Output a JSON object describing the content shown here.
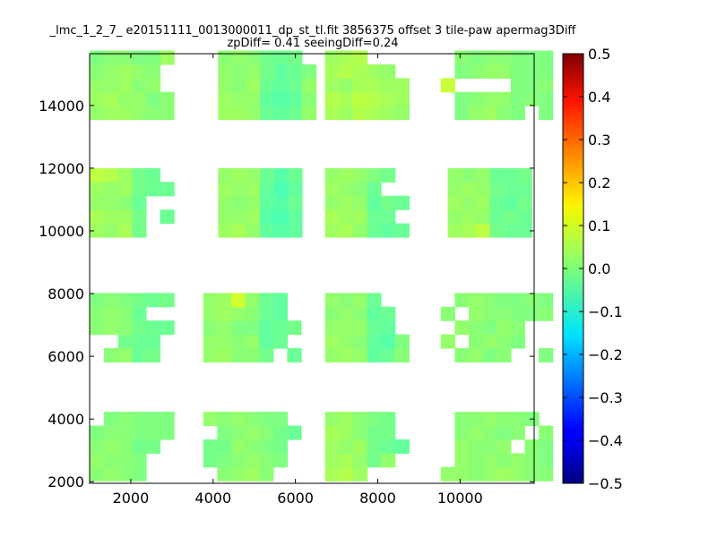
{
  "chart_data": {
    "type": "heatmap",
    "title_line1": "_lmc_1_2_7_ e20151111_0013000011_dp_st_tl.fit 3856375 offset 3 tile-paw apermag3Diff",
    "title_line2": "zpDiff= 0.41 seeingDiff=0.24",
    "xlabel": "",
    "ylabel": "",
    "xlim": [
      1000,
      11800
    ],
    "ylim": [
      1950,
      15650
    ],
    "x_ticks": [
      2000,
      4000,
      6000,
      8000,
      10000
    ],
    "y_ticks": [
      2000,
      4000,
      6000,
      8000,
      10000,
      12000,
      14000
    ],
    "colorbar": {
      "colormap": "jet",
      "vmin": -0.5,
      "vmax": 0.5,
      "ticks": [
        -0.5,
        -0.4,
        -0.3,
        -0.2,
        -0.1,
        0.0,
        0.1,
        0.2,
        0.3,
        0.4,
        0.5
      ]
    },
    "cell_size": [
      340,
      440
    ],
    "bands": [
      {
        "y_start": 13550,
        "rows": 5
      },
      {
        "y_start": 9800,
        "rows": 5
      },
      {
        "y_start": 5820,
        "rows": 5
      },
      {
        "y_start": 2030,
        "rows": 5
      }
    ],
    "columns": [
      {
        "x_start": 1010,
        "cols": 3
      },
      {
        "x_start": 2030,
        "cols": 2
      },
      {
        "x_start": 3400,
        "cols": 3
      },
      {
        "x_start": 4420,
        "cols": 3
      },
      {
        "x_start": 6720,
        "cols": 3
      },
      {
        "x_start": 7740,
        "cols": 3
      },
      {
        "x_start": 9700,
        "cols": 3
      },
      {
        "x_start": 10720,
        "cols": 3
      }
    ],
    "panels": [
      {
        "band": 0,
        "x_start": 1010,
        "ncols": 6,
        "values": [
          [
            0.02,
            0.03,
            0.03,
            0.02,
            0.01,
            0.01
          ],
          [
            0.03,
            0.04,
            0.02,
            0.02,
            0.0,
            0.01
          ],
          [
            0.02,
            0.02,
            0.03,
            0.01,
            0.02,
            null
          ],
          [
            0.01,
            0.02,
            0.03,
            0.02,
            0.01,
            null
          ],
          [
            0.0,
            0.01,
            0.01,
            0.0,
            0.0,
            0.03
          ]
        ]
      },
      {
        "band": 0,
        "x_start": 4120,
        "ncols": 7,
        "values": [
          [
            0.03,
            0.03,
            0.02,
            -0.02,
            -0.03,
            -0.02,
            0.02
          ],
          [
            0.03,
            0.02,
            0.02,
            -0.03,
            -0.04,
            -0.03,
            0.01
          ],
          [
            0.02,
            0.01,
            0.03,
            -0.02,
            -0.03,
            -0.02,
            0.02
          ],
          [
            0.02,
            0.01,
            0.02,
            -0.01,
            -0.03,
            -0.02,
            0.0
          ],
          [
            0.01,
            0.02,
            0.01,
            -0.01,
            -0.02,
            -0.01,
            null
          ]
        ]
      },
      {
        "band": 0,
        "x_start": 6720,
        "ncols": 6,
        "values": [
          [
            0.04,
            0.03,
            0.05,
            0.04,
            0.03,
            0.02
          ],
          [
            0.05,
            0.04,
            0.06,
            0.05,
            0.04,
            0.03
          ],
          [
            0.03,
            0.02,
            0.04,
            0.04,
            0.03,
            0.03
          ],
          [
            0.04,
            0.05,
            0.04,
            0.03,
            0.02,
            null
          ],
          [
            0.03,
            0.04,
            0.05,
            null,
            null,
            null
          ]
        ]
      },
      {
        "band": 0,
        "x_start": 9530,
        "ncols": 8,
        "values": [
          [
            null,
            0.0,
            0.02,
            0.03,
            0.01,
            0.0,
            null,
            0.0
          ],
          [
            null,
            0.0,
            0.01,
            0.02,
            0.02,
            0.0,
            0.01,
            0.0
          ],
          [
            0.07,
            null,
            null,
            null,
            null,
            0.0,
            0.0,
            0.01
          ],
          [
            null,
            0.0,
            0.01,
            0.02,
            0.02,
            0.0,
            0.0,
            0.0
          ],
          [
            null,
            0.01,
            0.0,
            0.01,
            0.01,
            0.0,
            0.0,
            0.0
          ]
        ]
      },
      {
        "band": 1,
        "x_start": 1010,
        "ncols": 6,
        "values": [
          [
            0.03,
            0.02,
            0.04,
            -0.01,
            null,
            null
          ],
          [
            0.04,
            0.03,
            0.03,
            -0.01,
            null,
            -0.02
          ],
          [
            0.02,
            0.02,
            0.01,
            -0.02,
            null,
            null
          ],
          [
            0.03,
            0.02,
            0.03,
            -0.01,
            -0.02,
            -0.02
          ],
          [
            0.06,
            0.05,
            0.03,
            -0.01,
            -0.02,
            null
          ]
        ]
      },
      {
        "band": 1,
        "x_start": 4120,
        "ncols": 6,
        "values": [
          [
            0.03,
            0.04,
            0.02,
            -0.03,
            -0.04,
            -0.03
          ],
          [
            0.02,
            0.02,
            0.03,
            -0.04,
            -0.05,
            -0.03
          ],
          [
            0.02,
            0.01,
            0.02,
            -0.03,
            -0.04,
            -0.02
          ],
          [
            0.03,
            0.02,
            0.03,
            -0.03,
            -0.05,
            -0.03
          ],
          [
            0.02,
            0.03,
            0.02,
            -0.02,
            -0.04,
            -0.02
          ]
        ]
      },
      {
        "band": 1,
        "x_start": 6720,
        "ncols": 6,
        "values": [
          [
            0.03,
            0.04,
            0.02,
            -0.02,
            -0.03,
            -0.02
          ],
          [
            0.04,
            0.03,
            0.03,
            -0.02,
            -0.02,
            null
          ],
          [
            0.02,
            0.03,
            0.02,
            -0.03,
            -0.01,
            -0.02
          ],
          [
            0.03,
            0.02,
            0.01,
            -0.02,
            null,
            null
          ],
          [
            0.02,
            0.03,
            0.02,
            0.0,
            -0.01,
            null
          ]
        ]
      },
      {
        "band": 1,
        "x_start": 9700,
        "ncols": 6,
        "values": [
          [
            0.03,
            0.04,
            0.06,
            -0.01,
            -0.02,
            -0.02
          ],
          [
            0.02,
            0.03,
            0.02,
            -0.02,
            -0.01,
            -0.02
          ],
          [
            0.03,
            0.02,
            0.03,
            -0.02,
            -0.03,
            -0.01
          ],
          [
            0.02,
            0.03,
            0.02,
            -0.01,
            -0.02,
            -0.02
          ],
          [
            0.02,
            0.01,
            0.02,
            -0.02,
            -0.02,
            -0.01
          ]
        ]
      },
      {
        "band": 2,
        "x_start": 1010,
        "ncols": 6,
        "values": [
          [
            null,
            0.01,
            0.02,
            -0.02,
            -0.01,
            null
          ],
          [
            null,
            null,
            -0.01,
            -0.02,
            -0.02,
            null
          ],
          [
            0.01,
            0.02,
            0.01,
            -0.01,
            -0.02,
            -0.02
          ],
          [
            0.01,
            0.02,
            0.01,
            -0.02,
            null,
            null
          ],
          [
            0.0,
            0.01,
            0.0,
            -0.01,
            -0.02,
            -0.01
          ]
        ]
      },
      {
        "band": 2,
        "x_start": 3760,
        "ncols": 7,
        "values": [
          [
            0.02,
            0.03,
            0.01,
            0.01,
            -0.01,
            null,
            -0.02
          ],
          [
            0.02,
            0.02,
            0.01,
            0.02,
            -0.03,
            -0.02,
            null
          ],
          [
            0.01,
            0.02,
            0.0,
            0.0,
            -0.03,
            -0.02,
            -0.01
          ],
          [
            0.02,
            0.03,
            0.02,
            0.01,
            -0.02,
            -0.03,
            null
          ],
          [
            0.02,
            0.03,
            0.08,
            0.02,
            -0.02,
            -0.03,
            null
          ]
        ]
      },
      {
        "band": 2,
        "x_start": 6720,
        "ncols": 6,
        "values": [
          [
            0.02,
            0.03,
            0.02,
            -0.03,
            -0.02,
            0.01
          ],
          [
            0.03,
            0.02,
            0.01,
            -0.03,
            -0.04,
            0.0
          ],
          [
            0.02,
            0.02,
            0.02,
            -0.02,
            -0.03,
            null
          ],
          [
            0.01,
            0.02,
            0.01,
            -0.03,
            -0.02,
            null
          ],
          [
            0.02,
            0.01,
            0.02,
            -0.02,
            null,
            null
          ]
        ]
      },
      {
        "band": 2,
        "x_start": 9530,
        "ncols": 8,
        "values": [
          [
            null,
            0.01,
            0.02,
            0.0,
            0.01,
            null,
            null,
            0.0
          ],
          [
            0.02,
            null,
            0.01,
            0.02,
            0.01,
            0.0,
            null,
            null
          ],
          [
            null,
            0.02,
            0.01,
            0.0,
            0.02,
            0.01,
            null,
            null
          ],
          [
            0.01,
            null,
            0.02,
            0.01,
            0.01,
            0.0,
            0.0,
            0.01
          ],
          [
            null,
            0.01,
            0.02,
            0.01,
            0.0,
            0.0,
            0.01,
            0.0
          ]
        ]
      },
      {
        "band": 3,
        "x_start": 1010,
        "ncols": 6,
        "values": [
          [
            0.01,
            0.02,
            0.01,
            0.0,
            null,
            null
          ],
          [
            0.02,
            0.01,
            0.01,
            0.0,
            null,
            null
          ],
          [
            0.01,
            0.02,
            0.01,
            -0.01,
            -0.01,
            null
          ],
          [
            0.0,
            0.01,
            0.01,
            0.0,
            0.0,
            0.0
          ],
          [
            null,
            0.0,
            0.01,
            0.0,
            0.0,
            0.0
          ]
        ]
      },
      {
        "band": 3,
        "x_start": 3760,
        "ncols": 7,
        "values": [
          [
            null,
            0.01,
            0.02,
            0.03,
            0.01,
            null,
            null
          ],
          [
            -0.01,
            0.0,
            0.01,
            0.02,
            0.01,
            0.0,
            null
          ],
          [
            -0.01,
            -0.01,
            0.02,
            0.01,
            0.0,
            -0.01,
            null
          ],
          [
            null,
            0.0,
            0.01,
            0.02,
            0.01,
            -0.01,
            -0.02
          ],
          [
            0.02,
            0.01,
            0.02,
            0.01,
            0.0,
            0.0,
            null
          ]
        ]
      },
      {
        "band": 3,
        "x_start": 6720,
        "ncols": 6,
        "values": [
          [
            0.04,
            0.05,
            0.03,
            null,
            null,
            null
          ],
          [
            0.03,
            0.04,
            0.02,
            -0.01,
            0.02,
            null
          ],
          [
            0.03,
            0.02,
            0.03,
            -0.01,
            -0.02,
            -0.03
          ],
          [
            0.04,
            0.03,
            0.01,
            -0.01,
            -0.01,
            null
          ],
          [
            0.02,
            0.03,
            0.01,
            0.0,
            -0.01,
            null
          ]
        ]
      },
      {
        "band": 3,
        "x_start": 9530,
        "ncols": 8,
        "values": [
          [
            0.02,
            0.02,
            0.01,
            0.02,
            0.03,
            0.02,
            0.01,
            0.01
          ],
          [
            null,
            0.02,
            0.01,
            0.02,
            0.01,
            0.02,
            0.01,
            0.0
          ],
          [
            null,
            0.02,
            0.01,
            0.01,
            0.02,
            null,
            0.01,
            0.0
          ],
          [
            null,
            0.01,
            0.02,
            0.01,
            0.0,
            0.01,
            null,
            0.01
          ],
          [
            null,
            0.01,
            0.01,
            0.02,
            0.01,
            0.01,
            0.0,
            null
          ]
        ]
      }
    ]
  }
}
